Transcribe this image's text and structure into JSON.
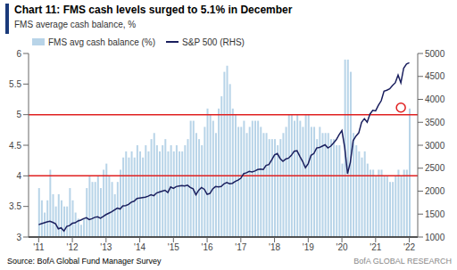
{
  "chart_data": {
    "type": "bar",
    "title": "Chart 11: FMS cash levels surged to 5.1% in December",
    "subtitle": "FMS average cash balance, %",
    "annotations": [
      "Source: BofA Global Fund Manager Survey",
      "BofA GLOBAL RESEARCH"
    ],
    "legend": "upper left",
    "grid": false,
    "x": [
      2011.0,
      2011.083,
      2011.167,
      2011.25,
      2011.333,
      2011.417,
      2011.5,
      2011.583,
      2011.667,
      2011.75,
      2011.833,
      2011.917,
      2012.0,
      2012.083,
      2012.167,
      2012.25,
      2012.333,
      2012.417,
      2012.5,
      2012.583,
      2012.667,
      2012.75,
      2012.833,
      2012.917,
      2013.0,
      2013.083,
      2013.167,
      2013.25,
      2013.333,
      2013.417,
      2013.5,
      2013.583,
      2013.667,
      2013.75,
      2013.833,
      2013.917,
      2014.0,
      2014.083,
      2014.167,
      2014.25,
      2014.333,
      2014.417,
      2014.5,
      2014.583,
      2014.667,
      2014.75,
      2014.833,
      2014.917,
      2015.0,
      2015.083,
      2015.167,
      2015.25,
      2015.333,
      2015.417,
      2015.5,
      2015.583,
      2015.667,
      2015.75,
      2015.833,
      2015.917,
      2016.0,
      2016.083,
      2016.167,
      2016.25,
      2016.333,
      2016.417,
      2016.5,
      2016.583,
      2016.667,
      2016.75,
      2016.833,
      2016.917,
      2017.0,
      2017.083,
      2017.167,
      2017.25,
      2017.333,
      2017.417,
      2017.5,
      2017.583,
      2017.667,
      2017.75,
      2017.833,
      2017.917,
      2018.0,
      2018.083,
      2018.167,
      2018.25,
      2018.333,
      2018.417,
      2018.5,
      2018.583,
      2018.667,
      2018.75,
      2018.833,
      2018.917,
      2019.0,
      2019.083,
      2019.167,
      2019.25,
      2019.333,
      2019.417,
      2019.5,
      2019.583,
      2019.667,
      2019.75,
      2019.833,
      2019.917,
      2020.0,
      2020.083,
      2020.167,
      2020.25,
      2020.333,
      2020.417,
      2020.5,
      2020.583,
      2020.667,
      2020.75,
      2020.833,
      2020.917,
      2021.0,
      2021.083,
      2021.167,
      2021.25,
      2021.333,
      2021.417,
      2021.5,
      2021.583,
      2021.667,
      2021.75,
      2021.833,
      2021.917,
      2022.0
    ],
    "series": [
      {
        "name": "FMS avg cash balance (%)",
        "type": "bar",
        "color": "#b8d4e8",
        "values": [
          3.8,
          3.6,
          3.4,
          3.6,
          4.1,
          3.7,
          3.5,
          3.7,
          3.6,
          3.5,
          3.5,
          3.8,
          3.6,
          3.4,
          3.3,
          3.2,
          3.3,
          3.8,
          4.0,
          3.9,
          3.9,
          4.0,
          3.8,
          4.1,
          4.2,
          4.0,
          3.9,
          3.7,
          3.9,
          4.1,
          4.3,
          4.4,
          4.3,
          4.4,
          4.3,
          4.5,
          4.4,
          4.3,
          4.5,
          4.4,
          4.6,
          4.7,
          4.5,
          4.4,
          4.5,
          4.6,
          4.4,
          4.5,
          4.4,
          4.5,
          4.4,
          4.4,
          4.5,
          4.6,
          4.9,
          4.9,
          4.7,
          4.6,
          4.5,
          4.8,
          5.1,
          5.0,
          4.9,
          4.7,
          5.1,
          5.3,
          5.7,
          5.8,
          5.5,
          5.1,
          5.0,
          4.8,
          4.8,
          4.9,
          4.7,
          4.8,
          4.9,
          4.9,
          4.9,
          4.8,
          4.7,
          4.7,
          4.6,
          4.6,
          4.6,
          4.5,
          4.6,
          4.7,
          4.8,
          5.0,
          5.0,
          4.9,
          5.0,
          4.9,
          4.8,
          5.0,
          5.0,
          4.8,
          4.8,
          4.6,
          4.8,
          4.7,
          4.7,
          4.7,
          4.6,
          4.6,
          4.5,
          4.5,
          4.2,
          5.9,
          5.9,
          5.7,
          4.7,
          4.5,
          4.4,
          4.3,
          4.4,
          4.2,
          4.1,
          4.1,
          4.0,
          4.1,
          4.1,
          4.0,
          4.0,
          3.9,
          3.9,
          4.0,
          4.1,
          4.0,
          4.1,
          4.1,
          5.1
        ]
      },
      {
        "name": "S&P 500 (RHS)",
        "type": "line",
        "color": "#1a1f5e",
        "axis": "y2",
        "values": [
          1270,
          1290,
          1310,
          1330,
          1345,
          1320,
          1290,
          1180,
          1200,
          1130,
          1230,
          1250,
          1300,
          1310,
          1350,
          1370,
          1400,
          1420,
          1380,
          1400,
          1430,
          1440,
          1410,
          1450,
          1490,
          1520,
          1550,
          1590,
          1630,
          1610,
          1680,
          1685,
          1710,
          1760,
          1780,
          1840,
          1850,
          1860,
          1870,
          1890,
          1920,
          1900,
          1960,
          1980,
          2000,
          2020,
          1970,
          2090,
          2060,
          2100,
          2110,
          2120,
          2110,
          2130,
          2080,
          2050,
          1920,
          2020,
          2080,
          2040,
          1930,
          1950,
          2050,
          2100,
          2090,
          2100,
          2160,
          2190,
          2160,
          2170,
          2210,
          2240,
          2280,
          2380,
          2400,
          2430,
          2420,
          2440,
          2470,
          2480,
          2470,
          2560,
          2580,
          2680,
          2790,
          2820,
          2710,
          2650,
          2700,
          2720,
          2780,
          2870,
          2880,
          2760,
          2650,
          2510,
          2600,
          2780,
          2820,
          2940,
          2950,
          2980,
          3010,
          2940,
          2980,
          3050,
          3120,
          3230,
          3320,
          2950,
          2380,
          2630,
          3100,
          3200,
          3270,
          3500,
          3580,
          3500,
          3680,
          3760,
          3750,
          3870,
          3970,
          4180,
          4200,
          4230,
          4300,
          4360,
          4530,
          4360,
          4680,
          4770,
          4800
        ]
      }
    ],
    "xlim": [
      2010.7,
      2022.25
    ],
    "xticks": [
      {
        "value": 2011,
        "label": "'11"
      },
      {
        "value": 2012,
        "label": "'12"
      },
      {
        "value": 2013,
        "label": "'13"
      },
      {
        "value": 2014,
        "label": "'14"
      },
      {
        "value": 2015,
        "label": "'15"
      },
      {
        "value": 2016,
        "label": "'16"
      },
      {
        "value": 2017,
        "label": "'17"
      },
      {
        "value": 2018,
        "label": "'18"
      },
      {
        "value": 2019,
        "label": "'19"
      },
      {
        "value": 2020,
        "label": "'20"
      },
      {
        "value": 2021,
        "label": "'21"
      },
      {
        "value": 2022,
        "label": "'22"
      }
    ],
    "ylim": [
      3,
      6
    ],
    "yticks": [
      3,
      3.5,
      4,
      4.5,
      5,
      5.5,
      6
    ],
    "y2lim": [
      1000,
      5000
    ],
    "y2ticks": [
      1000,
      1500,
      2000,
      2500,
      3000,
      3500,
      4000,
      4500,
      5000
    ],
    "hlines": [
      {
        "y": 5.0,
        "color": "#e02020"
      },
      {
        "y": 4.0,
        "color": "#e02020"
      },
      {
        "y": 3.0,
        "color": "black"
      }
    ],
    "markers": [
      {
        "x": 2021.75,
        "y": 3820,
        "axis": "y2",
        "color": "#e02020",
        "marker": "circle"
      }
    ],
    "accent_color": "#1a3a7a",
    "background_color": "#ffffff"
  }
}
